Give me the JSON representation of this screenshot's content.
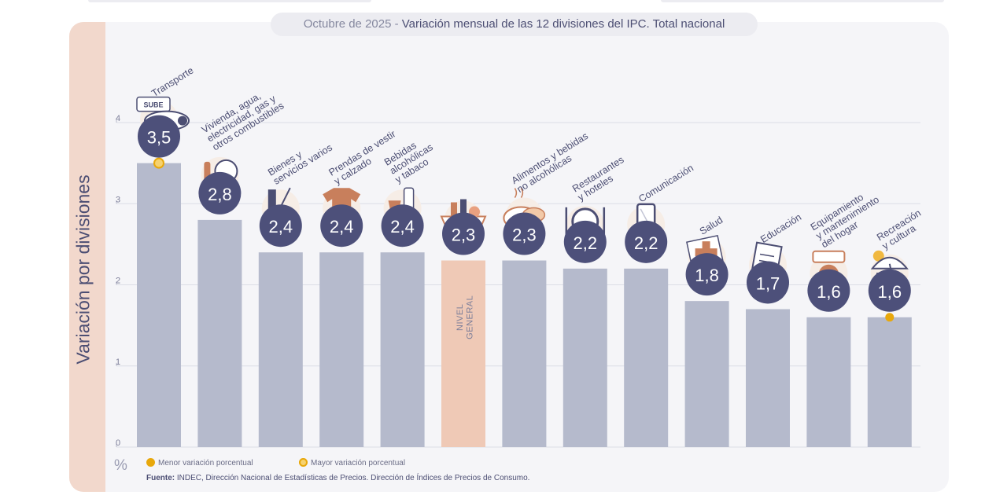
{
  "chart_data": {
    "type": "bar",
    "title_date": "Octubre de 2025",
    "title_separator": " - ",
    "title": "Variación mensual de las 12 divisiones del IPC. Total nacional",
    "ylabel": "Variación por divisiones",
    "unit": "%",
    "ylim": [
      0,
      4
    ],
    "yticks": [
      "0",
      "1",
      "2",
      "3",
      "4"
    ],
    "grid": true,
    "categories": [
      [
        "Transporte"
      ],
      [
        "Vivienda, agua,",
        "electricidad, gas y",
        "otros combustibles"
      ],
      [
        "Bienes y",
        "servicios varios"
      ],
      [
        "Prendas de vestir",
        "y calzado"
      ],
      [
        "Bebidas",
        "alcohólicas",
        "y tabaco"
      ],
      [
        "NIVEL",
        "GENERAL"
      ],
      [
        "Alimentos y bebidas",
        "no alcohólicas"
      ],
      [
        "Restaurantes",
        "y hoteles"
      ],
      [
        "Comunicación"
      ],
      [
        "Salud"
      ],
      [
        "Educación"
      ],
      [
        "Equipamiento",
        "y mantenimiento",
        "del hogar"
      ],
      [
        "Recreación",
        "y cultura"
      ]
    ],
    "values": [
      3.5,
      2.8,
      2.4,
      2.4,
      2.4,
      2.3,
      2.3,
      2.2,
      2.2,
      1.8,
      1.7,
      1.6,
      1.6
    ],
    "value_labels": [
      "3,5",
      "2,8",
      "2,4",
      "2,4",
      "2,4",
      "2,3",
      "2,3",
      "2,2",
      "2,2",
      "1,8",
      "1,7",
      "1,6",
      "1,6"
    ],
    "highlight_index": 5,
    "max_marker_index": 0,
    "min_marker_index": 12,
    "icons": [
      "bus-sube-icon",
      "tools-lightbulb-icon",
      "comb-scissors-icon",
      "tshirt-hat-icon",
      "bottles-icon",
      "market-basket-icon",
      "food-dishes-icon",
      "cutlery-plate-icon",
      "smartphone-icon",
      "first-aid-icon",
      "notebook-icon",
      "appliances-icon",
      "beach-umbrella-icon"
    ],
    "icon_texts": [
      "SUBE"
    ],
    "legend": [
      {
        "label": "Menor variación porcentual",
        "color": "#e8a80c"
      },
      {
        "label": "Mayor variación porcentual",
        "color": "#e8a80c"
      }
    ],
    "source_prefix": "Fuente:",
    "source_text": "INDEC, Dirección Nacional de Estadísticas de Precios. Dirección de Índices de Precios de Consumo.",
    "colors": {
      "bar": "#b5bacc",
      "bar_highlight": "#efc9b6",
      "badge": "#4d507a",
      "text": "#4c4e73",
      "marker": "#e8a80c",
      "icon_fill": "#c87f5c"
    }
  }
}
